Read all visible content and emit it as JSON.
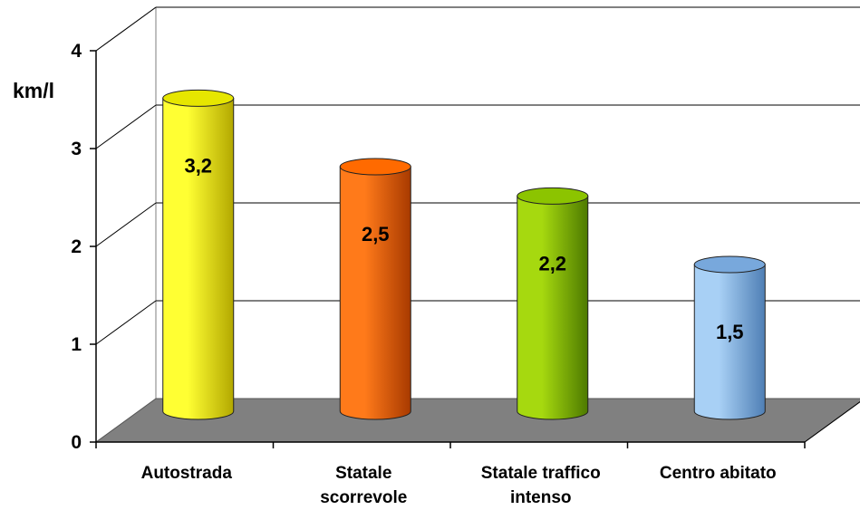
{
  "chart_data": {
    "type": "bar",
    "title": "",
    "xlabel": "",
    "ylabel": "km/l",
    "ylim": [
      0,
      4
    ],
    "yticks": [
      "0",
      "1",
      "2",
      "3",
      "4"
    ],
    "grid": true,
    "categories": [
      [
        "Autostrada"
      ],
      [
        "Statale",
        "scorrevole"
      ],
      [
        "Statale traffico",
        "intenso"
      ],
      [
        "Centro abitato"
      ]
    ],
    "values": [
      3.2,
      2.5,
      2.2,
      1.5
    ],
    "data_labels": [
      "3,2",
      "2,5",
      "2,2",
      "1,5"
    ],
    "colors": [
      {
        "light": "#ffff33",
        "dark": "#b3a800",
        "top": "#e6e600"
      },
      {
        "light": "#ff7a1a",
        "dark": "#a83a00",
        "top": "#ff6a00"
      },
      {
        "light": "#a6d90f",
        "dark": "#4d7a00",
        "top": "#8cc400"
      },
      {
        "light": "#a8d0f5",
        "dark": "#4f7fb5",
        "top": "#78a8dc"
      }
    ],
    "floor_color": "#808080"
  }
}
